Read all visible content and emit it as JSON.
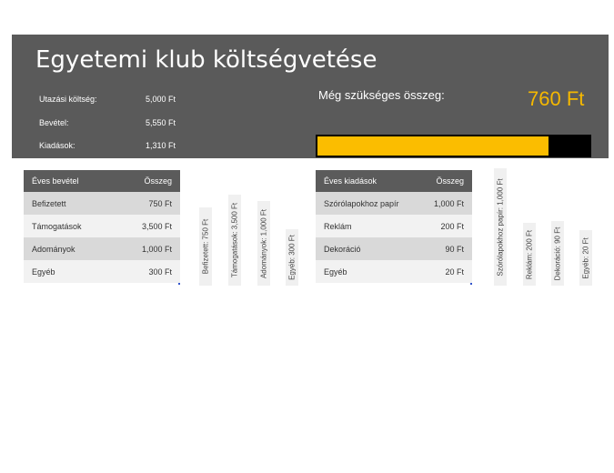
{
  "header": {
    "title": "Egyetemi klub költségvetése",
    "summary": [
      {
        "label": "Utazási költség:",
        "value": "5,000 Ft"
      },
      {
        "label": "Bevétel:",
        "value": "5,550 Ft"
      },
      {
        "label": "Kiadások:",
        "value": "1,310 Ft"
      }
    ],
    "needed_label": "Még szükséges összeg:",
    "needed_value": "760 Ft",
    "progress_fraction": 0.85
  },
  "income_table": {
    "header": {
      "name": "Éves bevétel",
      "amount": "Összeg"
    },
    "rows": [
      {
        "name": "Befizetett",
        "amount": "750 Ft"
      },
      {
        "name": "Támogatások",
        "amount": "3,500 Ft"
      },
      {
        "name": "Adományok",
        "amount": "1,000 Ft"
      },
      {
        "name": "Egyéb",
        "amount": "300 Ft"
      }
    ]
  },
  "income_labels": [
    "Befizetett: 750 Ft",
    "Támogatások: 3,500 Ft",
    "Adományok: 1,000 Ft",
    "Egyéb: 300 Ft"
  ],
  "expense_table": {
    "header": {
      "name": "Éves kiadások",
      "amount": "Összeg"
    },
    "rows": [
      {
        "name": "Szórólapokhoz papír",
        "amount": "1,000 Ft"
      },
      {
        "name": "Reklám",
        "amount": "200 Ft"
      },
      {
        "name": "Dekoráció",
        "amount": "90 Ft"
      },
      {
        "name": "Egyéb",
        "amount": "20 Ft"
      }
    ]
  },
  "expense_labels": [
    "Szórólapokhoz papír: 1,000 Ft",
    "Reklám: 200 Ft",
    "Dekoráció: 90 Ft",
    "Egyéb: 20 Ft"
  ],
  "colors": {
    "header_bg": "#5a5a5a",
    "accent": "#fbbd00",
    "needed_value": "#f5b800"
  }
}
